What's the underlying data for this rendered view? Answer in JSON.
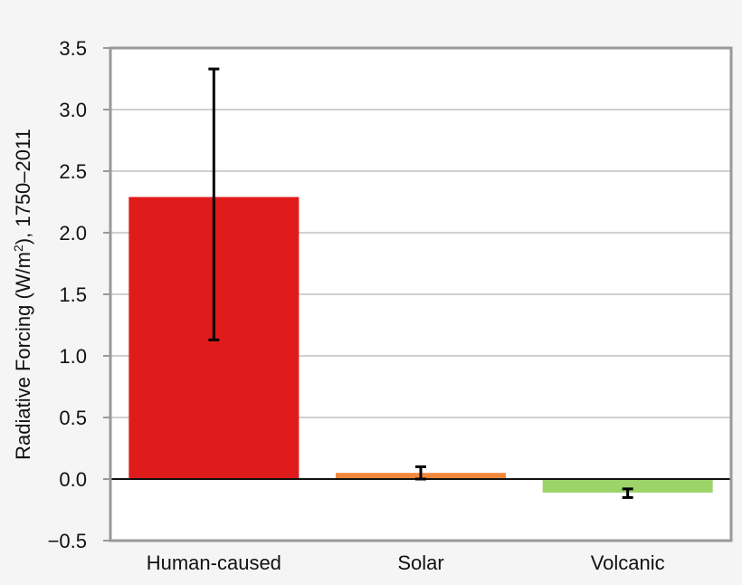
{
  "chart_data": {
    "type": "bar",
    "title": "",
    "xlabel": "",
    "ylabel": "Radiative Forcing (W/m²), 1750–2011",
    "ylabel_parts": {
      "before": "Radiative Forcing (W/m",
      "sup": "2",
      "after": "), 1750–2011"
    },
    "categories": [
      "Human-caused",
      "Solar",
      "Volcanic"
    ],
    "values": [
      2.29,
      0.05,
      -0.11
    ],
    "error_bars": [
      {
        "low": 1.13,
        "high": 3.33
      },
      {
        "low": 0.0,
        "high": 0.1
      },
      {
        "low": -0.15,
        "high": -0.08
      }
    ],
    "colors": [
      "#e01b1b",
      "#f4883a",
      "#9cd46a"
    ],
    "ylim": [
      -0.5,
      3.5
    ],
    "yticks": [
      -0.5,
      0.0,
      0.5,
      1.0,
      1.5,
      2.0,
      2.5,
      3.0,
      3.5
    ],
    "ytick_labels": [
      "−0.5",
      "0.0",
      "0.5",
      "1.0",
      "1.5",
      "2.0",
      "2.5",
      "3.0",
      "3.5"
    ],
    "grid": true,
    "legend": null
  },
  "style": {
    "background": "#f5f5f5",
    "plot_background": "#ffffff",
    "grid_color": "#d0d0d0",
    "axis_color": "#999999",
    "zero_line_color": "#111111",
    "errorbar_color": "#000000"
  }
}
